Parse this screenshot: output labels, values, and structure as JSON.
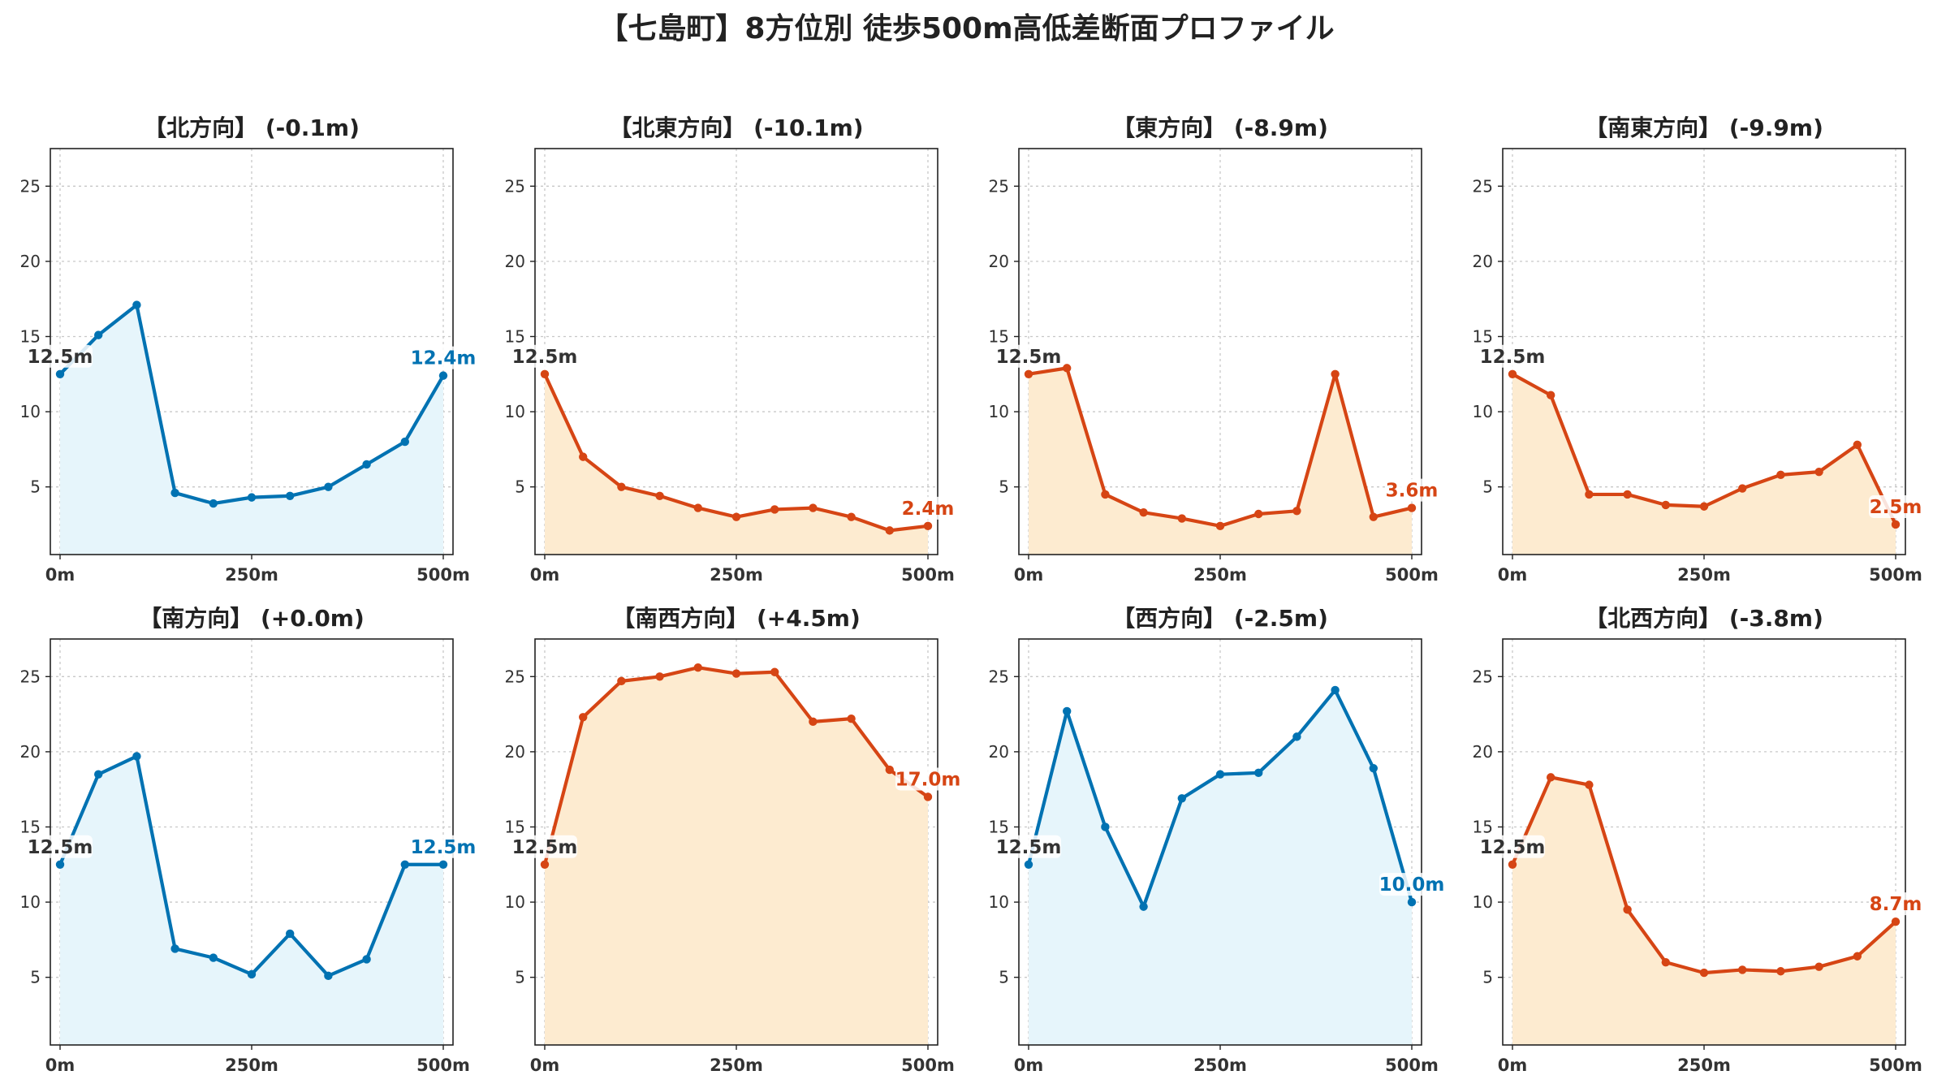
{
  "title": "【七島町】8方位別 徒歩500m高低差断面プロファイル",
  "colors": {
    "up": "#0072b2",
    "down": "#d64514",
    "up_fill": "#e6f5fb",
    "down_fill": "#fdebd0",
    "start_label": "#333333"
  },
  "chart_data": [
    {
      "type": "area",
      "title": "【北方向】 (-0.1m)",
      "trend": "up",
      "x": [
        0,
        50,
        100,
        150,
        200,
        250,
        300,
        350,
        400,
        450,
        500
      ],
      "y": [
        12.5,
        15.1,
        17.1,
        4.6,
        3.9,
        4.3,
        4.4,
        5.0,
        6.5,
        8.0,
        12.4
      ],
      "start_label": "12.5m",
      "end_label": "12.4m",
      "xticks": [
        "0m",
        "250m",
        "500m"
      ],
      "yticks": [
        5,
        10,
        15,
        20,
        25
      ],
      "ylim": [
        0.5,
        27.5
      ],
      "grid": true
    },
    {
      "type": "area",
      "title": "【北東方向】 (-10.1m)",
      "trend": "down",
      "x": [
        0,
        50,
        100,
        150,
        200,
        250,
        300,
        350,
        400,
        450,
        500
      ],
      "y": [
        12.5,
        7.0,
        5.0,
        4.4,
        3.6,
        3.0,
        3.5,
        3.6,
        3.0,
        2.1,
        2.4
      ],
      "start_label": "12.5m",
      "end_label": "2.4m",
      "xticks": [
        "0m",
        "250m",
        "500m"
      ],
      "yticks": [
        5,
        10,
        15,
        20,
        25
      ],
      "ylim": [
        0.5,
        27.5
      ],
      "grid": true
    },
    {
      "type": "area",
      "title": "【東方向】 (-8.9m)",
      "trend": "down",
      "x": [
        0,
        50,
        100,
        150,
        200,
        250,
        300,
        350,
        400,
        450,
        500
      ],
      "y": [
        12.5,
        12.9,
        4.5,
        3.3,
        2.9,
        2.4,
        3.2,
        3.4,
        12.5,
        3.0,
        3.6
      ],
      "start_label": "12.5m",
      "end_label": "3.6m",
      "xticks": [
        "0m",
        "250m",
        "500m"
      ],
      "yticks": [
        5,
        10,
        15,
        20,
        25
      ],
      "ylim": [
        0.5,
        27.5
      ],
      "grid": true
    },
    {
      "type": "area",
      "title": "【南東方向】 (-9.9m)",
      "trend": "down",
      "x": [
        0,
        50,
        100,
        150,
        200,
        250,
        300,
        350,
        400,
        450,
        500
      ],
      "y": [
        12.5,
        11.1,
        4.5,
        4.5,
        3.8,
        3.7,
        4.9,
        5.8,
        6.0,
        7.8,
        2.5
      ],
      "start_label": "12.5m",
      "end_label": "2.5m",
      "xticks": [
        "0m",
        "250m",
        "500m"
      ],
      "yticks": [
        5,
        10,
        15,
        20,
        25
      ],
      "ylim": [
        0.5,
        27.5
      ],
      "grid": true
    },
    {
      "type": "area",
      "title": "【南方向】 (+0.0m)",
      "trend": "up",
      "x": [
        0,
        50,
        100,
        150,
        200,
        250,
        300,
        350,
        400,
        450,
        500
      ],
      "y": [
        12.5,
        18.5,
        19.7,
        6.9,
        6.3,
        5.2,
        7.9,
        5.1,
        6.2,
        12.5,
        12.5
      ],
      "start_label": "12.5m",
      "end_label": "12.5m",
      "xticks": [
        "0m",
        "250m",
        "500m"
      ],
      "yticks": [
        5,
        10,
        15,
        20,
        25
      ],
      "ylim": [
        0.5,
        27.5
      ],
      "grid": true
    },
    {
      "type": "area",
      "title": "【南西方向】 (+4.5m)",
      "trend": "down",
      "x": [
        0,
        50,
        100,
        150,
        200,
        250,
        300,
        350,
        400,
        450,
        500
      ],
      "y": [
        12.5,
        22.3,
        24.7,
        25.0,
        25.6,
        25.2,
        25.3,
        22.0,
        22.2,
        18.8,
        17.0
      ],
      "start_label": "12.5m",
      "end_label": "17.0m",
      "xticks": [
        "0m",
        "250m",
        "500m"
      ],
      "yticks": [
        5,
        10,
        15,
        20,
        25
      ],
      "ylim": [
        0.5,
        27.5
      ],
      "grid": true
    },
    {
      "type": "area",
      "title": "【西方向】 (-2.5m)",
      "trend": "up",
      "x": [
        0,
        50,
        100,
        150,
        200,
        250,
        300,
        350,
        400,
        450,
        500
      ],
      "y": [
        12.5,
        22.7,
        15.0,
        9.7,
        16.9,
        18.5,
        18.6,
        21.0,
        24.1,
        18.9,
        10.0
      ],
      "start_label": "12.5m",
      "end_label": "10.0m",
      "xticks": [
        "0m",
        "250m",
        "500m"
      ],
      "yticks": [
        5,
        10,
        15,
        20,
        25
      ],
      "ylim": [
        0.5,
        27.5
      ],
      "grid": true
    },
    {
      "type": "area",
      "title": "【北西方向】 (-3.8m)",
      "trend": "down",
      "x": [
        0,
        50,
        100,
        150,
        200,
        250,
        300,
        350,
        400,
        450,
        500
      ],
      "y": [
        12.5,
        18.3,
        17.8,
        9.5,
        6.0,
        5.3,
        5.5,
        5.4,
        5.7,
        6.4,
        8.7
      ],
      "start_label": "12.5m",
      "end_label": "8.7m",
      "xticks": [
        "0m",
        "250m",
        "500m"
      ],
      "yticks": [
        5,
        10,
        15,
        20,
        25
      ],
      "ylim": [
        0.5,
        27.5
      ],
      "grid": true
    }
  ]
}
